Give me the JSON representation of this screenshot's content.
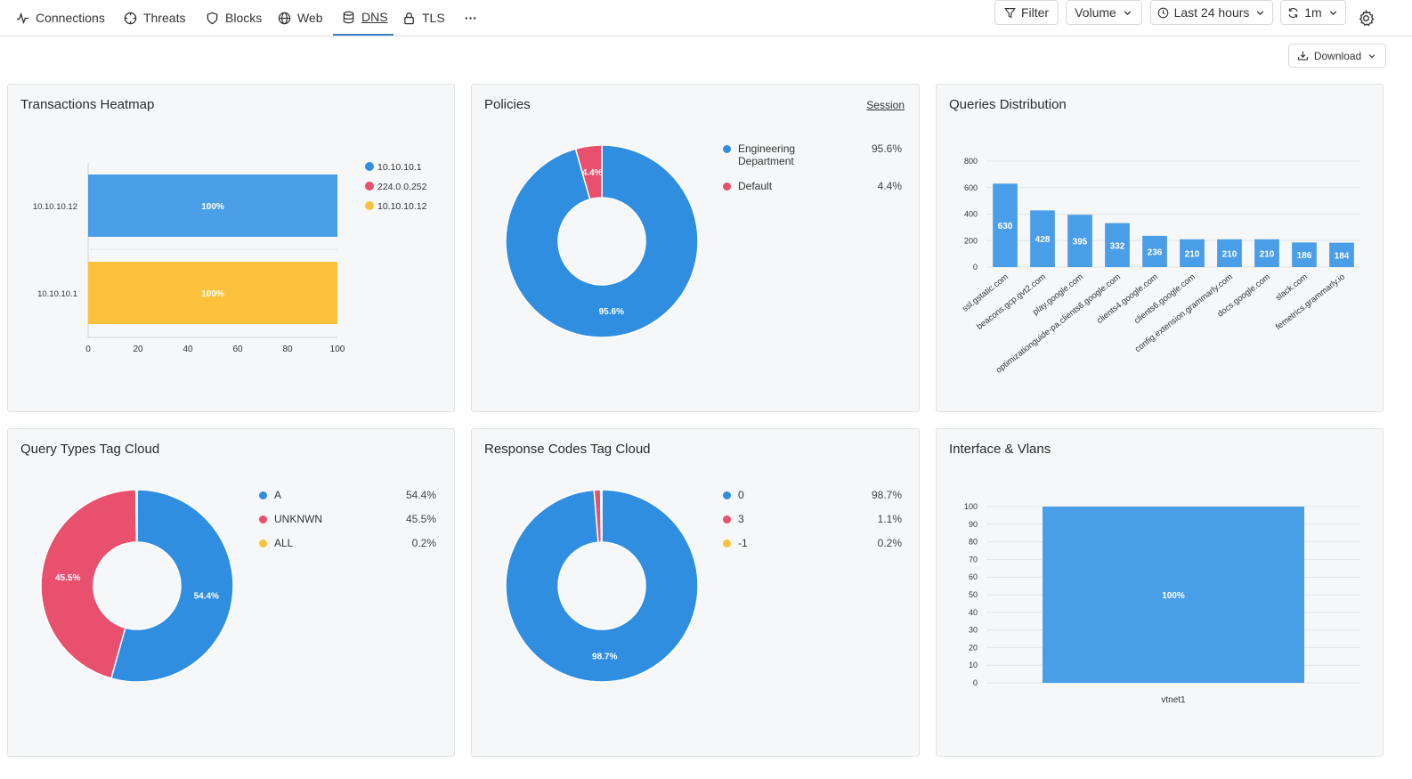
{
  "nav": {
    "tabs": [
      {
        "label": "Connections",
        "icon": "activity-icon"
      },
      {
        "label": "Threats",
        "icon": "crosshair-icon"
      },
      {
        "label": "Blocks",
        "icon": "shield-icon"
      },
      {
        "label": "Web",
        "icon": "globe-icon"
      },
      {
        "label": "DNS",
        "icon": "database-icon",
        "active": true
      },
      {
        "label": "TLS",
        "icon": "lock-icon"
      }
    ],
    "more_icon": "more-horizontal-icon"
  },
  "toolbar": {
    "filter_label": "Filter",
    "volume_label": "Volume",
    "time_label": "Last 24 hours",
    "refresh_label": "1m",
    "download_label": "Download"
  },
  "cards": {
    "heatmap_title": "Transactions Heatmap",
    "policies_title": "Policies",
    "policies_link": "Session",
    "queries_title": "Queries Distribution",
    "query_types_title": "Query Types Tag Cloud",
    "response_codes_title": "Response Codes Tag Cloud",
    "interface_title": "Interface & Vlans"
  },
  "colors": {
    "blue": "#2f8ee0",
    "red": "#e8506e",
    "yellow": "#fcc23e",
    "bar_blue": "#4a9ee8"
  },
  "chart_data": [
    {
      "id": "heatmap",
      "type": "bar",
      "orientation": "horizontal",
      "categories": [
        "10.10.10.12",
        "10.10.10.1"
      ],
      "series": [
        {
          "name": "10.10.10.1",
          "values": [
            0,
            0
          ]
        },
        {
          "name": "224.0.0.252",
          "values": [
            0,
            0
          ]
        },
        {
          "name": "10.10.10.12",
          "values": [
            100,
            100
          ]
        }
      ],
      "bars": [
        {
          "category": "10.10.10.12",
          "value": 100,
          "label": "100%",
          "color": "#4a9ee8"
        },
        {
          "category": "10.10.10.1",
          "value": 100,
          "label": "100%",
          "color": "#fcc23e"
        }
      ],
      "legend": [
        {
          "name": "10.10.10.1",
          "color": "#2f8ee0"
        },
        {
          "name": "224.0.0.252",
          "color": "#e8506e"
        },
        {
          "name": "10.10.10.12",
          "color": "#fcc23e"
        }
      ],
      "xticks": [
        "0",
        "20",
        "40",
        "60",
        "80",
        "100"
      ],
      "xlim": [
        0,
        100
      ],
      "legend_position": "right"
    },
    {
      "id": "policies",
      "type": "pie",
      "donut": true,
      "slices": [
        {
          "name": "Engineering Department",
          "value": 95.6,
          "label": "95.6%",
          "color": "#2f8ee0"
        },
        {
          "name": "Default",
          "value": 4.4,
          "label": "4.4%",
          "color": "#e8506e"
        }
      ],
      "legend_position": "right"
    },
    {
      "id": "queries",
      "type": "bar",
      "categories": [
        "ssl.gstatic.com",
        "beacons.gcp.gvt2.com",
        "play.google.com",
        "optimizationguide-pa.clients6.google.com",
        "clients4.google.com",
        "clients6.google.com",
        "config.extension.grammarly.com",
        "docs.google.com",
        "slack.com",
        "femetrics.grammarly.io"
      ],
      "values": [
        630,
        428,
        395,
        332,
        236,
        210,
        210,
        210,
        186,
        184
      ],
      "yticks": [
        "0",
        "200",
        "400",
        "600",
        "800"
      ],
      "ylim": [
        0,
        800
      ],
      "grid": true
    },
    {
      "id": "query_types",
      "type": "pie",
      "donut": true,
      "slices": [
        {
          "name": "A",
          "value": 54.4,
          "label": "54.4%",
          "color": "#2f8ee0"
        },
        {
          "name": "UNKNWN",
          "value": 45.5,
          "label": "45.5%",
          "color": "#e8506e"
        },
        {
          "name": "ALL",
          "value": 0.2,
          "label": "0.2%",
          "color": "#fcc23e"
        }
      ],
      "legend_position": "right"
    },
    {
      "id": "response_codes",
      "type": "pie",
      "donut": true,
      "slices": [
        {
          "name": "0",
          "value": 98.7,
          "label": "98.7%",
          "color": "#2f8ee0"
        },
        {
          "name": "3",
          "value": 1.1,
          "label": "1.1%",
          "color": "#e8506e"
        },
        {
          "name": "-1",
          "value": 0.2,
          "label": "0.2%",
          "color": "#fcc23e"
        }
      ],
      "legend_position": "right"
    },
    {
      "id": "interface",
      "type": "bar",
      "categories": [
        "vtnet1"
      ],
      "values": [
        100
      ],
      "value_labels": [
        "100%"
      ],
      "yticks": [
        "0",
        "10",
        "20",
        "30",
        "40",
        "50",
        "60",
        "70",
        "80",
        "90",
        "100"
      ],
      "ylim": [
        0,
        100
      ],
      "grid": true
    }
  ]
}
